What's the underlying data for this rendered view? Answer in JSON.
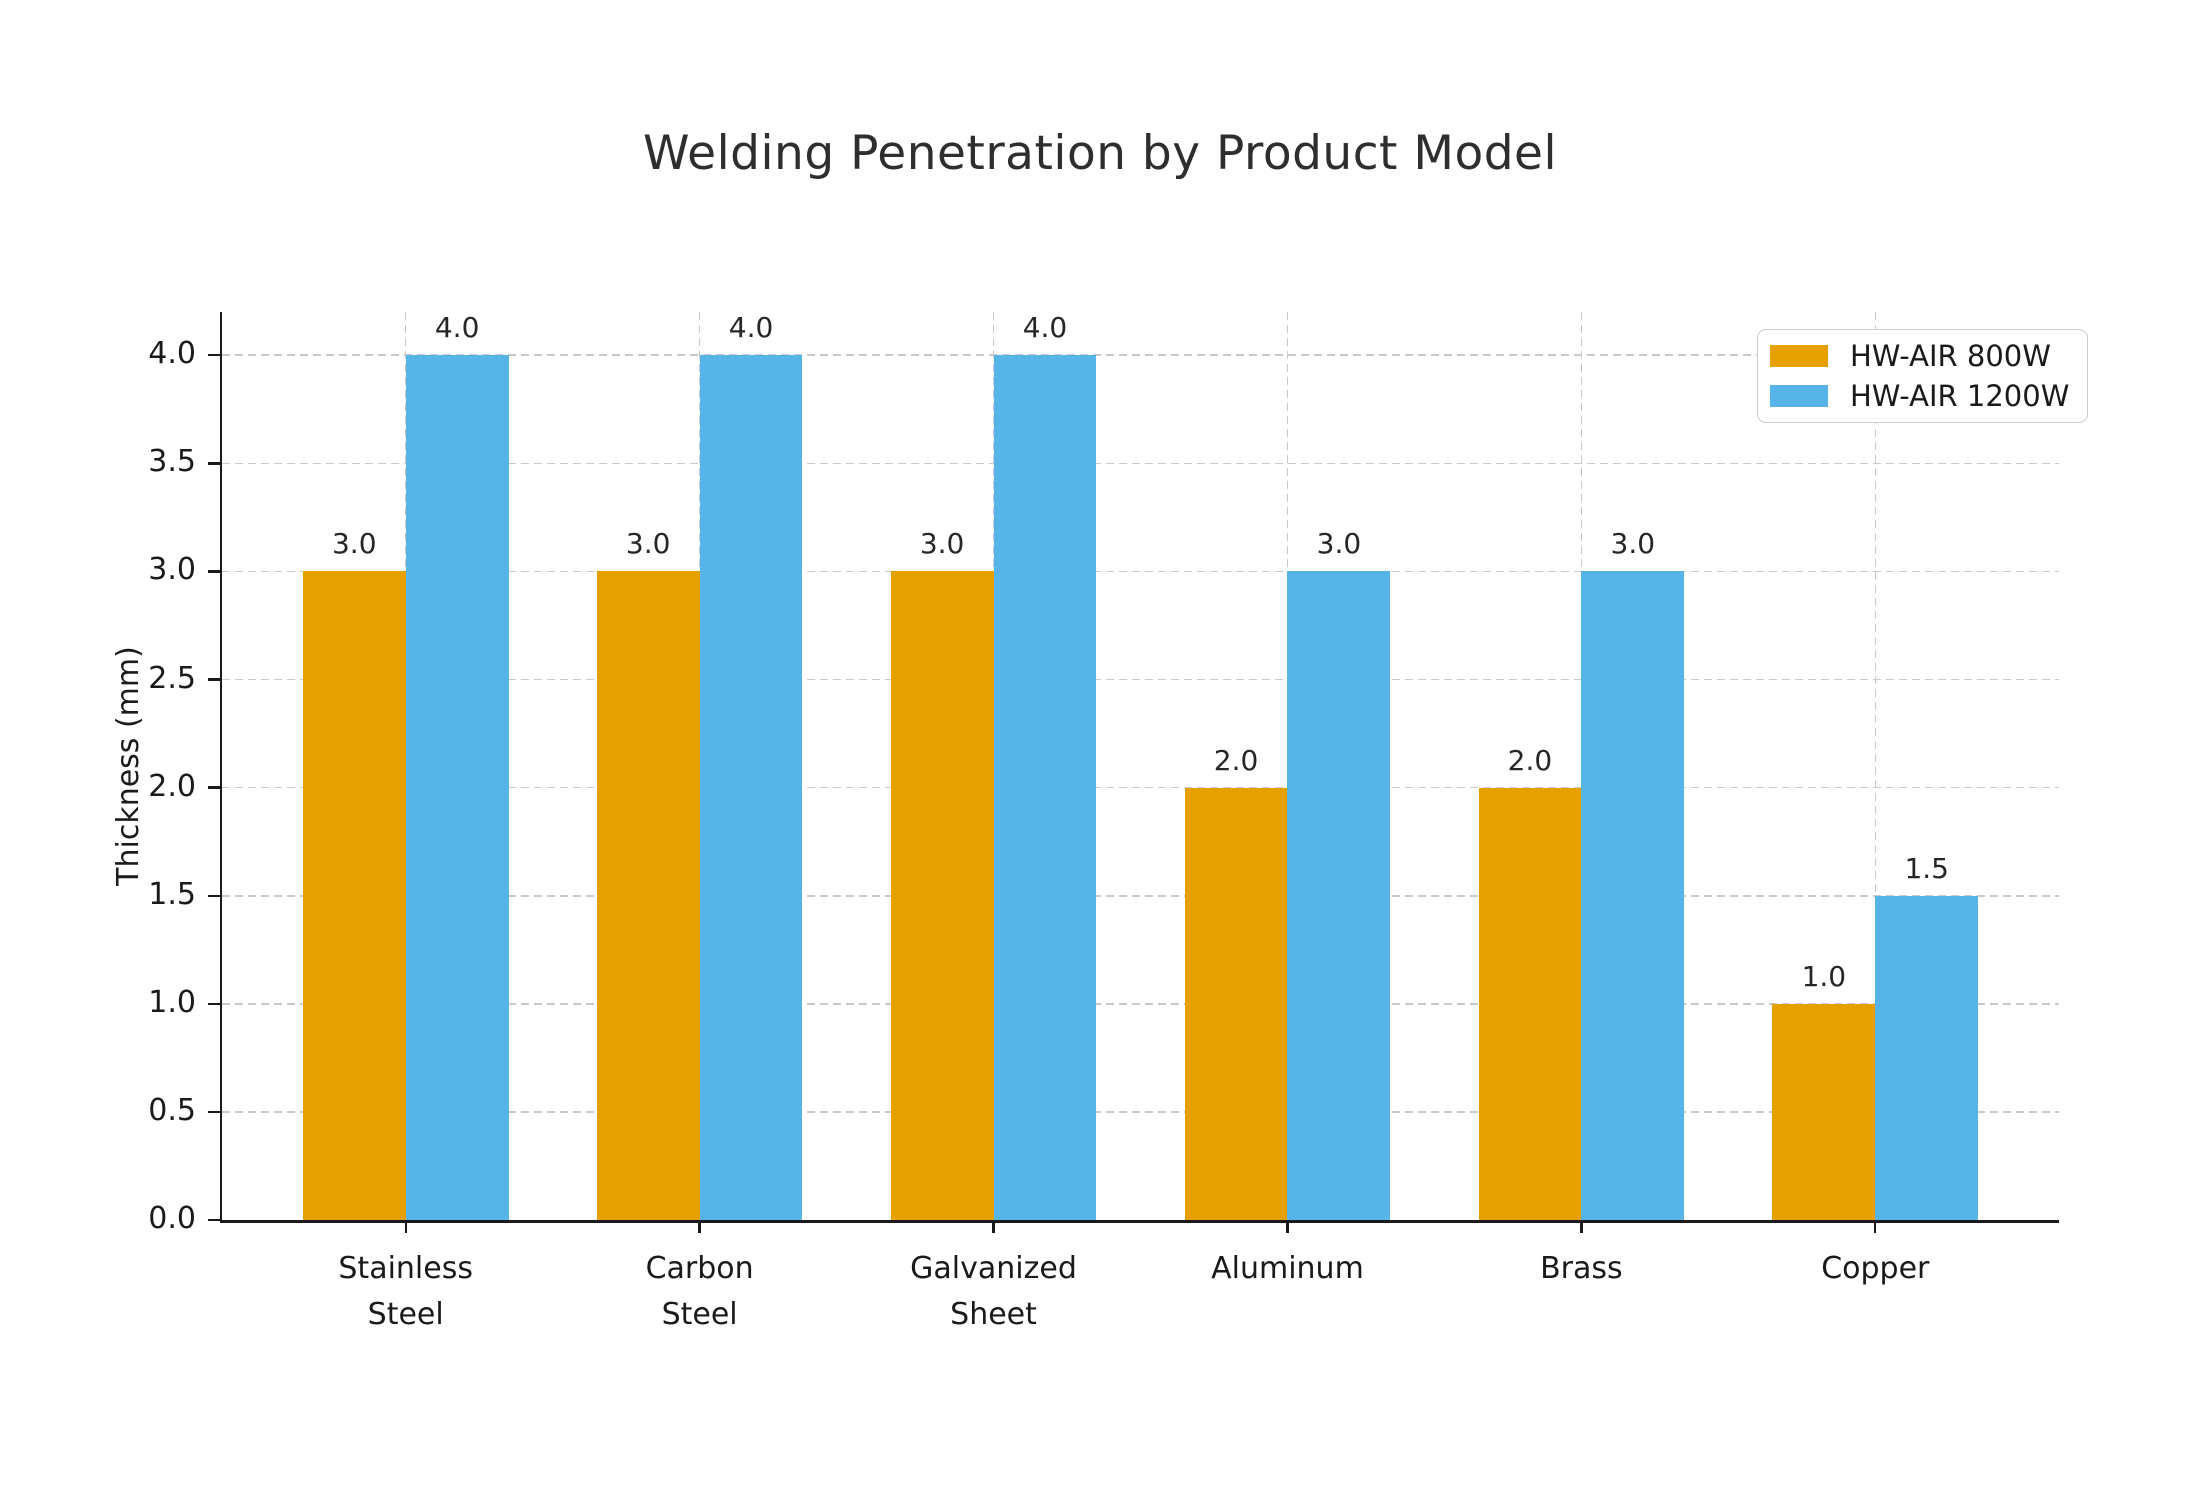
{
  "chart_data": {
    "type": "bar",
    "title": "Welding Penetration by Product Model",
    "ylabel": "Thickness (mm)",
    "xlabel": "",
    "categories": [
      "Stainless\nSteel",
      "Carbon\nSteel",
      "Galvanized\nSheet",
      "Aluminum",
      "Brass",
      "Copper"
    ],
    "series": [
      {
        "name": "HW-AIR 800W",
        "color": "#E6A000",
        "values": [
          3.0,
          3.0,
          3.0,
          2.0,
          2.0,
          1.0
        ],
        "labels": [
          "3.0",
          "3.0",
          "3.0",
          "2.0",
          "2.0",
          "1.0"
        ]
      },
      {
        "name": "HW-AIR 1200W",
        "color": "#56B4E9",
        "values": [
          4.0,
          4.0,
          4.0,
          3.0,
          3.0,
          1.5
        ],
        "labels": [
          "4.0",
          "4.0",
          "4.0",
          "3.0",
          "3.0",
          "1.5"
        ]
      }
    ],
    "ylim": [
      0,
      4.2
    ],
    "yticks": [
      0.0,
      0.5,
      1.0,
      1.5,
      2.0,
      2.5,
      3.0,
      3.5,
      4.0
    ],
    "ytick_labels": [
      "0.0",
      "0.5",
      "1.0",
      "1.5",
      "2.0",
      "2.5",
      "3.0",
      "3.5",
      "4.0"
    ],
    "grid": true,
    "legend_position": "upper right",
    "grid_color": "#c9c9c9",
    "axis_color": "#1a1a1a",
    "title_color": "#2e2e2e"
  }
}
